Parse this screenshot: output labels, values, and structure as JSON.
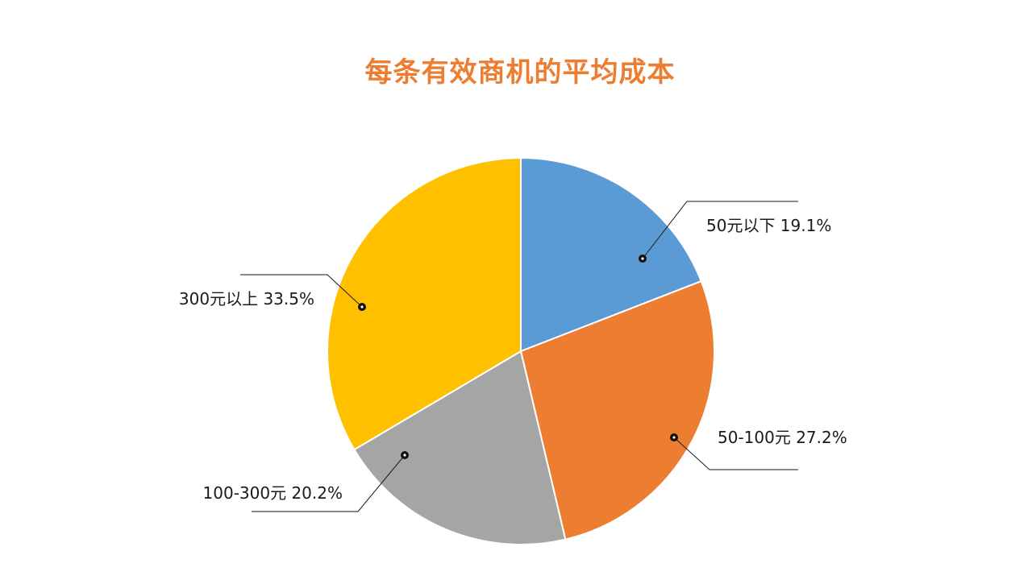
{
  "chart_data": {
    "type": "pie",
    "title": "每条有效商机的平均成本",
    "title_color": "#ED7D31",
    "slices": [
      {
        "label": "50元以下",
        "value": 19.1,
        "display": "19.1%",
        "color": "#5B9BD5"
      },
      {
        "label": "50-100元",
        "value": 27.2,
        "display": "27.2%",
        "color": "#ED7D31"
      },
      {
        "label": "100-300元",
        "value": 20.2,
        "display": "20.2%",
        "color": "#A5A5A5"
      },
      {
        "label": "300元以上",
        "value": 33.5,
        "display": "33.5%",
        "color": "#FFC000"
      }
    ],
    "start_angle_deg": 0,
    "direction": "clockwise",
    "legend": "none",
    "data_labels": "outside-with-leader-lines"
  }
}
